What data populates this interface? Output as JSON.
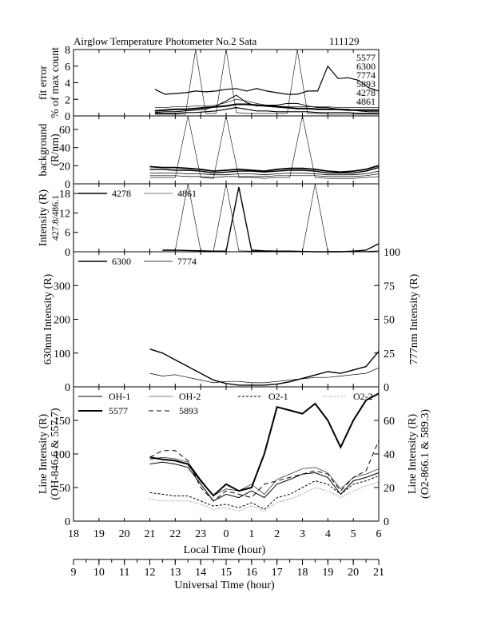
{
  "title": {
    "left": "Airglow Temperature Photometer No.2  Sata",
    "right": "111129"
  },
  "x_axes": {
    "local": {
      "label": "Local Time (hour)",
      "ticks": [
        "18",
        "19",
        "20",
        "21",
        "22",
        "23",
        "0",
        "1",
        "2",
        "3",
        "4",
        "5",
        "6"
      ]
    },
    "ut": {
      "label": "Universal Time (hour)",
      "ticks": [
        "9",
        "10",
        "11",
        "12",
        "13",
        "14",
        "15",
        "16",
        "17",
        "18",
        "19",
        "20",
        "21"
      ]
    }
  },
  "chart_data": [
    {
      "type": "line",
      "panel": "fit_error",
      "ylabel": [
        "fit error",
        "% of max count"
      ],
      "yticks": [
        "0",
        "2",
        "4",
        "6",
        "8"
      ],
      "ylim": [
        0,
        8
      ],
      "legend": [
        "5577",
        "6300",
        "7774",
        "5893",
        "4278",
        "4861"
      ],
      "x": [
        12.2,
        12.6,
        13.0,
        13.4,
        13.8,
        14.2,
        14.6,
        15.0,
        15.4,
        15.8,
        16.2,
        16.6,
        17.0,
        17.4,
        17.8,
        18.2,
        18.6,
        19.0,
        19.4,
        19.8,
        20.2,
        20.6,
        21.0
      ],
      "series": [
        {
          "name": "5577",
          "values": [
            3.2,
            2.6,
            2.7,
            2.8,
            3.0,
            2.9,
            3.0,
            3.2,
            3.3,
            3.0,
            3.3,
            3.0,
            2.8,
            2.6,
            2.6,
            3.0,
            3.0,
            6.0,
            4.5,
            4.6,
            4.3,
            3.4,
            3.0
          ]
        },
        {
          "name": "6300",
          "values": [
            1.0,
            1.0,
            1.1,
            1.1,
            1.2,
            1.2,
            1.3,
            1.6,
            2.0,
            1.8,
            1.5,
            1.3,
            1.2,
            1.1,
            1.1,
            1.1,
            1.1,
            1.1,
            1.0,
            1.0,
            1.0,
            1.0,
            1.0
          ]
        },
        {
          "name": "7774",
          "values": [
            0.6,
            0.7,
            0.8,
            0.8,
            0.9,
            1.0,
            1.1,
            1.2,
            1.4,
            1.4,
            1.3,
            1.2,
            1.1,
            1.0,
            0.9,
            0.9,
            0.8,
            0.8,
            0.8,
            0.7,
            0.7,
            0.7,
            0.7
          ]
        },
        {
          "name": "5893",
          "values": [
            0.4,
            0.5,
            0.5,
            0.6,
            0.7,
            0.8,
            1.2,
            1.8,
            2.5,
            1.6,
            1.2,
            1.3,
            1.3,
            1.5,
            1.5,
            1.2,
            1.0,
            1.0,
            0.8,
            0.8,
            0.6,
            0.5,
            0.5
          ]
        },
        {
          "name": "4278",
          "values": [
            0.3,
            0.3,
            0.3,
            0.4,
            0.4,
            0.5,
            0.6,
            0.8,
            1.0,
            0.8,
            0.6,
            0.6,
            0.5,
            0.5,
            0.5,
            0.5,
            0.4,
            0.4,
            0.4,
            0.4,
            0.3,
            0.3,
            0.3
          ]
        },
        {
          "name": "4861",
          "values": [
            0.2,
            0.2,
            0.2,
            0.2,
            8.0,
            0.3,
            0.3,
            8.0,
            0.4,
            0.3,
            0.3,
            0.3,
            0.3,
            0.3,
            8.0,
            0.3,
            0.3,
            0.2,
            0.2,
            0.2,
            0.2,
            0.2,
            0.2
          ]
        }
      ]
    },
    {
      "type": "line",
      "panel": "background",
      "ylabel": [
        "background",
        "(R/nm)"
      ],
      "yticks": [
        "0",
        "20",
        "40",
        "60"
      ],
      "ylim": [
        0,
        75
      ],
      "x": [
        12.0,
        12.5,
        13.0,
        13.5,
        14.0,
        14.5,
        15.0,
        15.5,
        16.0,
        16.5,
        17.0,
        17.5,
        18.0,
        18.5,
        19.0,
        19.5,
        20.0,
        20.5,
        21.0
      ],
      "series": [
        {
          "values": [
            19,
            18,
            18,
            17,
            16,
            14,
            15,
            16,
            15,
            14,
            16,
            17,
            17,
            16,
            14,
            13,
            14,
            16,
            20
          ]
        },
        {
          "values": [
            16,
            16,
            15,
            15,
            14,
            12,
            13,
            14,
            14,
            13,
            14,
            15,
            15,
            14,
            12,
            12,
            12,
            14,
            18
          ]
        },
        {
          "values": [
            12,
            12,
            12,
            11,
            11,
            10,
            10,
            11,
            11,
            10,
            11,
            12,
            12,
            11,
            10,
            10,
            10,
            11,
            14
          ]
        },
        {
          "values": [
            9,
            9,
            9,
            8,
            8,
            7,
            8,
            8,
            8,
            8,
            9,
            9,
            9,
            9,
            8,
            8,
            8,
            9,
            11
          ]
        },
        {
          "values": [
            7,
            7,
            7,
            75,
            7,
            6,
            75,
            7,
            7,
            6,
            7,
            7,
            75,
            7,
            6,
            6,
            6,
            7,
            8
          ]
        }
      ]
    },
    {
      "type": "line",
      "panel": "blue_lines",
      "ylabel": [
        "Intensity (R)",
        "427.8/486.1"
      ],
      "yticks": [
        "0",
        "6",
        "12",
        "18"
      ],
      "ylim": [
        0,
        21
      ],
      "legend": [
        "4278",
        "4861"
      ],
      "x": [
        12.5,
        13.0,
        13.5,
        14.0,
        14.5,
        15.0,
        15.5,
        16.0,
        16.5,
        17.0,
        17.5,
        18.0,
        18.5,
        19.0,
        19.5,
        20.0,
        20.5,
        21.0
      ],
      "series": [
        {
          "name": "4278",
          "values": [
            0.5,
            0.5,
            0.4,
            0.3,
            0.2,
            0.2,
            20,
            0.5,
            0.3,
            0.2,
            0.2,
            0.1,
            -1.0,
            -0.5,
            0.0,
            0.2,
            0.5,
            2.5
          ]
        },
        {
          "name": "4861",
          "values": [
            0.4,
            0.4,
            21,
            0.3,
            0.2,
            21,
            0.3,
            0.2,
            0.2,
            0.1,
            0.1,
            0.1,
            21,
            0.1,
            0.1,
            0.1,
            0.1,
            0.3
          ]
        }
      ]
    },
    {
      "type": "line",
      "panel": "red_lines",
      "ylabel_left": "630nm Intensity (R)",
      "ylabel_right": "777nm Intensity (R)",
      "yticks_left": [
        "0",
        "100",
        "200",
        "300"
      ],
      "yticks_right": [
        "0",
        "25",
        "50",
        "75",
        "100"
      ],
      "ylim_left": [
        0,
        400
      ],
      "ylim_right": [
        0,
        100
      ],
      "legend": [
        "6300",
        "7774"
      ],
      "x": [
        12.0,
        12.5,
        13.0,
        13.5,
        14.0,
        14.5,
        15.0,
        15.5,
        16.0,
        16.5,
        17.0,
        17.5,
        18.0,
        18.5,
        19.0,
        19.5,
        20.0,
        20.5,
        21.0
      ],
      "series": [
        {
          "name": "6300",
          "axis": "left",
          "values": [
            112,
            100,
            80,
            60,
            40,
            20,
            10,
            5,
            5,
            5,
            8,
            15,
            25,
            35,
            45,
            40,
            50,
            60,
            105
          ]
        },
        {
          "name": "7774",
          "axis": "right",
          "values": [
            10,
            8,
            9,
            7,
            5,
            3,
            4,
            4,
            3,
            3,
            4,
            5,
            6,
            7,
            7,
            8,
            9,
            10,
            14
          ]
        }
      ]
    },
    {
      "type": "line",
      "panel": "oh_o2_lines",
      "ylabel_left": [
        "Line Intensity (R)",
        "(OH-846.6 & 557.7)"
      ],
      "ylabel_right": [
        "Line Intensity (R)",
        "(O2-866.1 & 589.3)"
      ],
      "yticks_left": [
        "0",
        "50",
        "100",
        "150"
      ],
      "yticks_right": [
        "0",
        "20",
        "40",
        "60"
      ],
      "ylim_left": [
        0,
        200
      ],
      "ylim_right": [
        0,
        80
      ],
      "legend": [
        "OH-1",
        "OH-2",
        "O2-1",
        "O2-2",
        "5577",
        "5893"
      ],
      "x": [
        12.0,
        12.5,
        13.0,
        13.5,
        14.0,
        14.5,
        15.0,
        15.5,
        16.0,
        16.5,
        17.0,
        17.5,
        18.0,
        18.5,
        19.0,
        19.5,
        20.0,
        20.5,
        21.0
      ],
      "series": [
        {
          "name": "OH-1",
          "axis": "left",
          "values": [
            85,
            88,
            85,
            80,
            55,
            30,
            40,
            35,
            45,
            35,
            55,
            62,
            70,
            72,
            65,
            40,
            60,
            65,
            72
          ]
        },
        {
          "name": "OH-2",
          "axis": "left",
          "values": [
            92,
            95,
            93,
            88,
            62,
            38,
            48,
            45,
            55,
            40,
            62,
            70,
            78,
            80,
            72,
            48,
            65,
            70,
            78
          ]
        },
        {
          "name": "O2-1",
          "axis": "right",
          "values": [
            17,
            16,
            15,
            15,
            12,
            9,
            10,
            8,
            11,
            7,
            14,
            16,
            20,
            24,
            22,
            16,
            22,
            24,
            27
          ]
        },
        {
          "name": "O2-2",
          "axis": "right",
          "values": [
            13,
            12,
            12,
            12,
            10,
            7,
            8,
            6,
            9,
            6,
            11,
            13,
            16,
            20,
            18,
            14,
            18,
            21,
            23
          ]
        },
        {
          "name": "5577",
          "axis": "left",
          "values": [
            95,
            92,
            90,
            85,
            60,
            38,
            55,
            45,
            50,
            100,
            170,
            165,
            160,
            175,
            150,
            110,
            150,
            180,
            190
          ]
        },
        {
          "name": "5893",
          "axis": "right",
          "values": [
            38,
            42,
            42,
            36,
            20,
            12,
            18,
            16,
            14,
            22,
            24,
            26,
            28,
            30,
            28,
            18,
            26,
            30,
            48
          ]
        }
      ]
    }
  ]
}
